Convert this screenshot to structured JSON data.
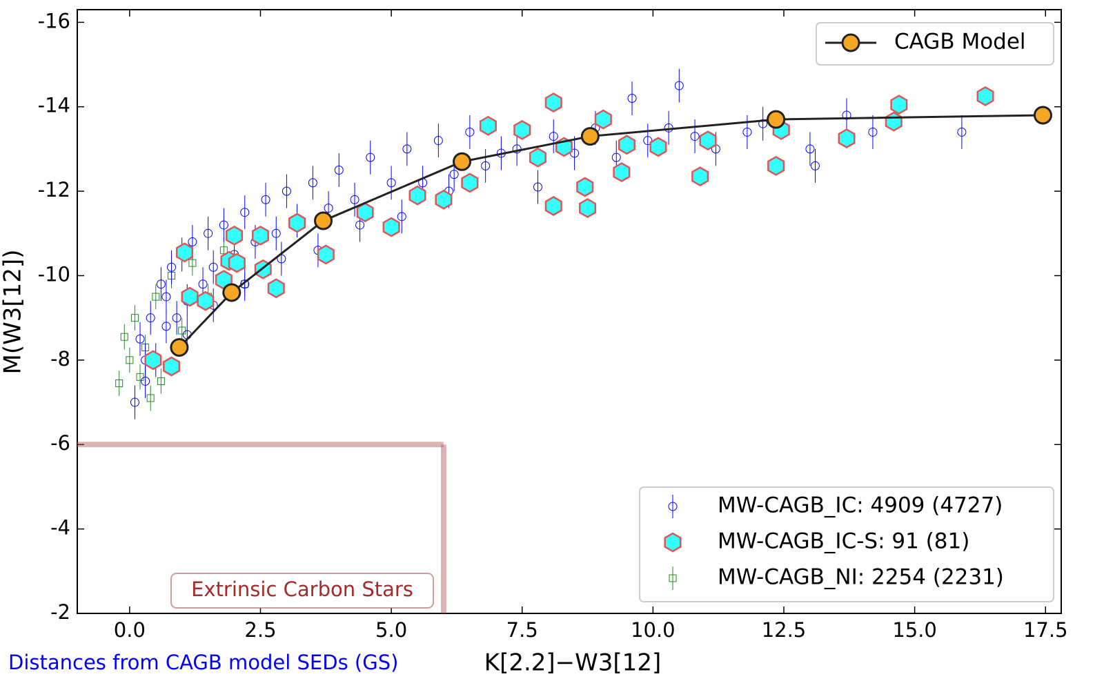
{
  "chart_data": {
    "type": "scatter",
    "xlabel": "K[2.2]−W3[12]",
    "ylabel": "M(W3[12])",
    "note": "Distances from CAGB model SEDs (GS)",
    "xlim": [
      -1.0,
      17.8
    ],
    "ylim": [
      -2,
      -16.3
    ],
    "xticks": [
      {
        "value": 0,
        "label": "0.0"
      },
      {
        "value": 2.5,
        "label": "2.5"
      },
      {
        "value": 5,
        "label": "5.0"
      },
      {
        "value": 7.5,
        "label": "7.5"
      },
      {
        "value": 10,
        "label": "10.0"
      },
      {
        "value": 12.5,
        "label": "12.5"
      },
      {
        "value": 15,
        "label": "15.0"
      },
      {
        "value": 17.5,
        "label": "17.5"
      }
    ],
    "yticks": [
      -16,
      -14,
      -12,
      -10,
      -8,
      -6,
      -4,
      -2
    ],
    "region": {
      "x": 6,
      "y": -6,
      "label": "Extrinsic Carbon Stars",
      "color": "#b05a5a"
    },
    "series": [
      {
        "name": "MW-CAGB_IC: 4909 (4727)",
        "marker": "circle",
        "color": "#0000ff",
        "yerr": 0.4,
        "x": [
          0.1,
          0.2,
          0.3,
          0.4,
          0.5,
          0.6,
          0.7,
          0.8,
          0.9,
          1.0,
          1.1,
          1.2,
          1.4,
          1.5,
          1.6,
          1.8,
          2.0,
          2.2,
          2.4,
          2.6,
          2.8,
          3.0,
          3.2,
          3.5,
          3.8,
          4.0,
          4.3,
          4.6,
          5.0,
          5.3,
          5.6,
          5.9,
          6.2,
          6.5,
          6.8,
          7.1,
          7.4,
          7.8,
          8.1,
          8.5,
          8.9,
          9.3,
          9.6,
          9.9,
          10.3,
          10.5,
          10.8,
          11.2,
          11.8,
          12.1,
          13.0,
          13.1,
          13.7,
          14.2,
          15.9,
          0.3,
          0.7,
          1.1,
          1.6,
          2.2,
          2.9,
          3.6,
          4.4,
          5.2,
          6.1
        ],
        "values": [
          -7.0,
          -8.5,
          -7.5,
          -9.0,
          -8.0,
          -9.8,
          -8.8,
          -10.2,
          -9.0,
          -10.5,
          -9.4,
          -10.8,
          -9.8,
          -11.0,
          -10.2,
          -11.2,
          -10.5,
          -11.5,
          -10.8,
          -11.8,
          -11.0,
          -12.0,
          -11.3,
          -12.2,
          -11.6,
          -12.5,
          -11.8,
          -12.8,
          -12.2,
          -13.0,
          -12.2,
          -13.2,
          -12.4,
          -13.4,
          -12.6,
          -12.9,
          -13.0,
          -12.1,
          -13.3,
          -12.9,
          -13.5,
          -12.8,
          -14.2,
          -13.2,
          -13.5,
          -14.5,
          -13.3,
          -13.0,
          -13.4,
          -13.6,
          -13.0,
          -12.6,
          -13.8,
          -13.4,
          -13.4,
          -8.0,
          -9.5,
          -8.6,
          -9.3,
          -9.8,
          -10.4,
          -10.6,
          -11.2,
          -11.4,
          -12.0
        ]
      },
      {
        "name": "MW-CAGB_IC-S: 91 (81)",
        "marker": "hexagon",
        "color": "#33ffff",
        "edgecolor": "#e05555",
        "x": [
          0.45,
          0.8,
          1.05,
          1.15,
          1.45,
          1.8,
          1.9,
          2.0,
          2.05,
          2.5,
          2.55,
          2.8,
          3.2,
          3.75,
          4.5,
          5.0,
          5.5,
          6.0,
          6.5,
          6.85,
          7.5,
          7.8,
          8.1,
          8.1,
          8.3,
          8.7,
          8.75,
          9.05,
          9.4,
          9.5,
          10.1,
          10.9,
          11.05,
          12.35,
          12.45,
          13.7,
          14.6,
          14.7,
          16.35
        ],
        "values": [
          -8.0,
          -7.85,
          -10.55,
          -9.5,
          -9.4,
          -9.9,
          -10.35,
          -10.95,
          -10.3,
          -10.95,
          -10.15,
          -9.7,
          -11.25,
          -10.5,
          -11.5,
          -11.15,
          -11.9,
          -11.8,
          -12.2,
          -13.55,
          -13.45,
          -12.8,
          -14.1,
          -11.65,
          -13.05,
          -12.1,
          -11.6,
          -13.7,
          -12.45,
          -13.1,
          -13.05,
          -12.35,
          -13.2,
          -12.6,
          -13.45,
          -13.25,
          -13.65,
          -14.05,
          -14.25
        ]
      },
      {
        "name": "MW-CAGB_NI: 2254 (2231)",
        "marker": "square",
        "color": "#228b22",
        "yerr": 0.3,
        "x": [
          -0.2,
          -0.1,
          0.0,
          0.1,
          0.2,
          0.3,
          0.4,
          0.5,
          0.6,
          0.8,
          1.0,
          1.2,
          1.5,
          1.8,
          2.2
        ],
        "values": [
          -7.45,
          -8.55,
          -8.0,
          -9.0,
          -7.6,
          -8.3,
          -7.1,
          -9.5,
          -7.5,
          -10.0,
          -8.7,
          -10.3,
          -9.5,
          -10.6,
          -9.8
        ]
      }
    ],
    "model": {
      "name": "CAGB Model",
      "color": "#f5a623",
      "linecolor": "#222222",
      "x": [
        0.95,
        1.95,
        3.7,
        6.35,
        8.8,
        12.35,
        17.45
      ],
      "values": [
        -8.3,
        -9.6,
        -11.3,
        -12.7,
        -13.3,
        -13.7,
        -13.8
      ]
    }
  }
}
